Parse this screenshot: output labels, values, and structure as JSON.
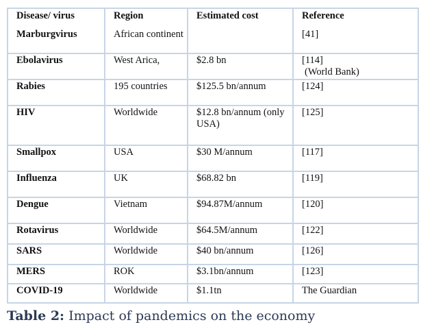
{
  "table": {
    "headers": [
      "Disease/ virus",
      "Region",
      "Estimated cost",
      "Reference"
    ],
    "rows": [
      {
        "disease": "Marburgvirus",
        "region": "African continent",
        "cost": "",
        "ref": "[41]",
        "ref2": ""
      },
      {
        "disease": "Ebolavirus",
        "region": "West Arica,",
        "cost": "$2.8 bn",
        "ref": "[114]",
        "ref2": "(World Bank)"
      },
      {
        "disease": "Rabies",
        "region": "195 countries",
        "cost": "$125.5 bn/annum",
        "ref": "[124]",
        "ref2": ""
      },
      {
        "disease": "HIV",
        "region": "Worldwide",
        "cost": "$12.8      bn/annum (only USA)",
        "ref": "[125]",
        "ref2": ""
      },
      {
        "disease": "Smallpox",
        "region": "USA",
        "cost": "$30 M/annum",
        "ref": "[117]",
        "ref2": ""
      },
      {
        "disease": "Influenza",
        "region": "UK",
        "cost": "$68.82 bn",
        "ref": "[119]",
        "ref2": ""
      },
      {
        "disease": "Dengue",
        "region": "Vietnam",
        "cost": "$94.87M/annum",
        "ref": "[120]",
        "ref2": ""
      },
      {
        "disease": "Rotavirus",
        "region": "Worldwide",
        "cost": "$64.5M/annum",
        "ref": "[122]",
        "ref2": ""
      },
      {
        "disease": "SARS",
        "region": "Worldwide",
        "cost": "$40 bn/annum",
        "ref": "[126]",
        "ref2": ""
      },
      {
        "disease": "MERS",
        "region": "ROK",
        "cost": "$3.1bn/annum",
        "ref": "[123]",
        "ref2": ""
      },
      {
        "disease": "COVID-19",
        "region": "Worldwide",
        "cost": "$1.1tn",
        "ref": "The Guardian",
        "ref2": ""
      }
    ]
  },
  "caption": {
    "label": "Table 2:",
    "text": " Impact of pandemics on the economy"
  }
}
